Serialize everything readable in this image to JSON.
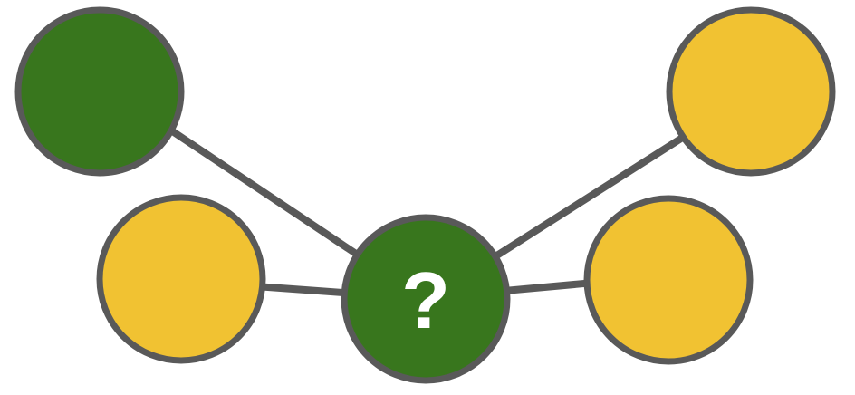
{
  "colors": {
    "green": "#38761d",
    "yellow": "#f1c232",
    "outline": "#595959",
    "label": "#ffffff"
  },
  "nodes": [
    {
      "id": "top-left",
      "color": "green"
    },
    {
      "id": "mid-left",
      "color": "yellow"
    },
    {
      "id": "center",
      "color": "green",
      "label": "?"
    },
    {
      "id": "mid-right",
      "color": "yellow"
    },
    {
      "id": "top-right",
      "color": "yellow"
    }
  ],
  "edges": [
    {
      "from": "top-left",
      "to": "center"
    },
    {
      "from": "mid-left",
      "to": "center"
    },
    {
      "from": "top-right",
      "to": "center"
    },
    {
      "from": "mid-right",
      "to": "center"
    }
  ]
}
